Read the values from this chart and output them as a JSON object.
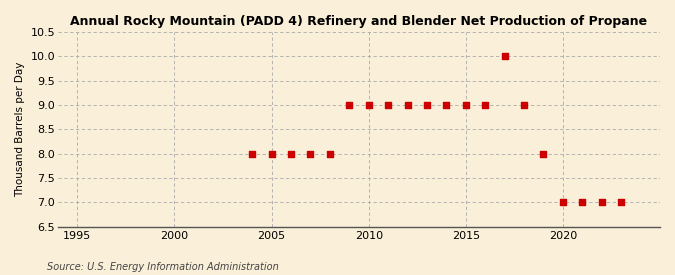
{
  "title": "Annual Rocky Mountain (PADD 4) Refinery and Blender Net Production of Propane",
  "ylabel": "Thousand Barrels per Day",
  "source": "Source: U.S. Energy Information Administration",
  "background_color": "#faefd8",
  "years": [
    2004,
    2005,
    2006,
    2007,
    2008,
    2009,
    2010,
    2011,
    2012,
    2013,
    2014,
    2015,
    2016,
    2017,
    2018,
    2019,
    2020,
    2021,
    2022,
    2023
  ],
  "values": [
    8.0,
    8.0,
    8.0,
    8.0,
    8.0,
    9.0,
    9.0,
    9.0,
    9.0,
    9.0,
    9.0,
    9.0,
    9.0,
    10.0,
    9.0,
    8.0,
    7.0,
    7.0,
    7.0,
    7.0
  ],
  "marker_color": "#cc0000",
  "grid_color": "#aaaaaa",
  "xlim": [
    1994,
    2025
  ],
  "ylim": [
    6.5,
    10.5
  ],
  "yticks": [
    6.5,
    7.0,
    7.5,
    8.0,
    8.5,
    9.0,
    9.5,
    10.0,
    10.5
  ],
  "xticks": [
    1995,
    2000,
    2005,
    2010,
    2015,
    2020
  ]
}
